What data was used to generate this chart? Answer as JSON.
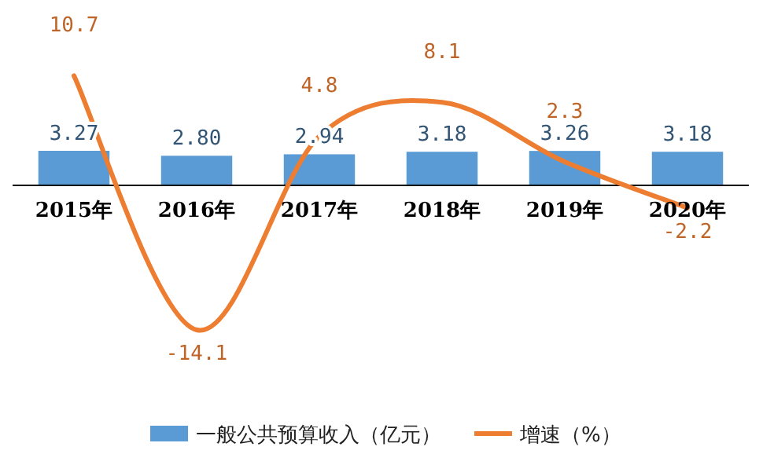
{
  "chart_data": {
    "type": "bar",
    "categories": [
      "2015年",
      "2016年",
      "2017年",
      "2018年",
      "2019年",
      "2020年"
    ],
    "series": [
      {
        "name": "一般公共预算收入（亿元）",
        "color": "#5b9bd5",
        "values": [
          3.27,
          2.8,
          2.94,
          3.18,
          3.26,
          3.18
        ],
        "value_labels": [
          "3.27",
          "2.80",
          "2.94",
          "3.18",
          "3.26",
          "3.18"
        ]
      },
      {
        "name": "增速（%）",
        "type": "line",
        "axis": "y2",
        "color": "#ed7d31",
        "values": [
          10.7,
          -14.1,
          4.8,
          8.1,
          2.3,
          -2.2
        ]
      }
    ],
    "data_labels": true,
    "tick_labels": "x",
    "legend": "bottom",
    "grid": false,
    "marker": "none",
    "line_style": "solid"
  }
}
